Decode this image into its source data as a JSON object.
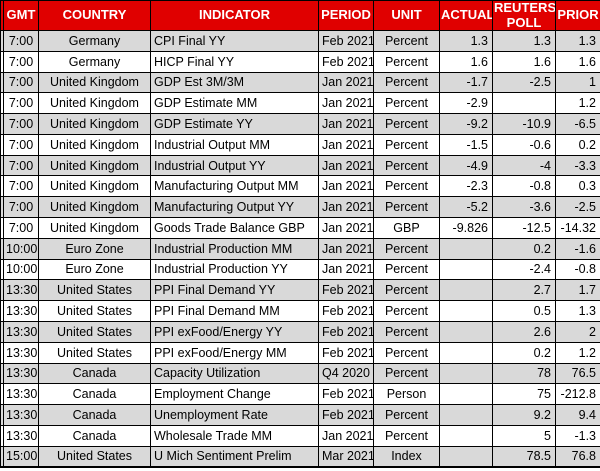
{
  "colors": {
    "header_bg": "#E00000",
    "header_text": "#FFFFFF",
    "alt_row_bg": "#D9D9D9",
    "row_bg": "#FFFFFF",
    "border": "#000000",
    "text": "#000000"
  },
  "chart_data": {
    "type": "table",
    "title": "Economic calendar releases",
    "columns": [
      {
        "key": "gmt",
        "label": "GMT"
      },
      {
        "key": "country",
        "label": "COUNTRY"
      },
      {
        "key": "indicator",
        "label": "INDICATOR"
      },
      {
        "key": "period",
        "label": "PERIOD"
      },
      {
        "key": "unit",
        "label": "UNIT"
      },
      {
        "key": "actual",
        "label": "ACTUAL"
      },
      {
        "key": "poll",
        "label": "REUTERS POLL"
      },
      {
        "key": "prior",
        "label": "PRIOR"
      }
    ],
    "rows": [
      {
        "gmt": "7:00",
        "country": "Germany",
        "indicator": "CPI Final YY",
        "period": "Feb 2021",
        "unit": "Percent",
        "actual": "1.3",
        "poll": "1.3",
        "prior": "1.3"
      },
      {
        "gmt": "7:00",
        "country": "Germany",
        "indicator": "HICP Final YY",
        "period": "Feb 2021",
        "unit": "Percent",
        "actual": "1.6",
        "poll": "1.6",
        "prior": "1.6"
      },
      {
        "gmt": "7:00",
        "country": "United Kingdom",
        "indicator": "GDP Est 3M/3M",
        "period": "Jan 2021",
        "unit": "Percent",
        "actual": "-1.7",
        "poll": "-2.5",
        "prior": "1"
      },
      {
        "gmt": "7:00",
        "country": "United Kingdom",
        "indicator": "GDP Estimate MM",
        "period": "Jan 2021",
        "unit": "Percent",
        "actual": "-2.9",
        "poll": "",
        "prior": "1.2"
      },
      {
        "gmt": "7:00",
        "country": "United Kingdom",
        "indicator": "GDP Estimate YY",
        "period": "Jan 2021",
        "unit": "Percent",
        "actual": "-9.2",
        "poll": "-10.9",
        "prior": "-6.5"
      },
      {
        "gmt": "7:00",
        "country": "United Kingdom",
        "indicator": "Industrial Output MM",
        "period": "Jan 2021",
        "unit": "Percent",
        "actual": "-1.5",
        "poll": "-0.6",
        "prior": "0.2"
      },
      {
        "gmt": "7:00",
        "country": "United Kingdom",
        "indicator": "Industrial Output YY",
        "period": "Jan 2021",
        "unit": "Percent",
        "actual": "-4.9",
        "poll": "-4",
        "prior": "-3.3"
      },
      {
        "gmt": "7:00",
        "country": "United Kingdom",
        "indicator": "Manufacturing Output MM",
        "period": "Jan 2021",
        "unit": "Percent",
        "actual": "-2.3",
        "poll": "-0.8",
        "prior": "0.3"
      },
      {
        "gmt": "7:00",
        "country": "United Kingdom",
        "indicator": "Manufacturing Output YY",
        "period": "Jan 2021",
        "unit": "Percent",
        "actual": "-5.2",
        "poll": "-3.6",
        "prior": "-2.5"
      },
      {
        "gmt": "7:00",
        "country": "United Kingdom",
        "indicator": "Goods Trade Balance GBP",
        "period": "Jan 2021",
        "unit": "GBP",
        "actual": "-9.826",
        "poll": "-12.5",
        "prior": "-14.32"
      },
      {
        "gmt": "10:00",
        "country": "Euro Zone",
        "indicator": "Industrial Production MM",
        "period": "Jan 2021",
        "unit": "Percent",
        "actual": "",
        "poll": "0.2",
        "prior": "-1.6"
      },
      {
        "gmt": "10:00",
        "country": "Euro Zone",
        "indicator": "Industrial Production YY",
        "period": "Jan 2021",
        "unit": "Percent",
        "actual": "",
        "poll": "-2.4",
        "prior": "-0.8"
      },
      {
        "gmt": "13:30",
        "country": "United States",
        "indicator": "PPI Final Demand YY",
        "period": "Feb 2021",
        "unit": "Percent",
        "actual": "",
        "poll": "2.7",
        "prior": "1.7"
      },
      {
        "gmt": "13:30",
        "country": "United States",
        "indicator": "PPI Final Demand MM",
        "period": "Feb 2021",
        "unit": "Percent",
        "actual": "",
        "poll": "0.5",
        "prior": "1.3"
      },
      {
        "gmt": "13:30",
        "country": "United States",
        "indicator": "PPI exFood/Energy YY",
        "period": "Feb 2021",
        "unit": "Percent",
        "actual": "",
        "poll": "2.6",
        "prior": "2"
      },
      {
        "gmt": "13:30",
        "country": "United States",
        "indicator": "PPI exFood/Energy MM",
        "period": "Feb 2021",
        "unit": "Percent",
        "actual": "",
        "poll": "0.2",
        "prior": "1.2"
      },
      {
        "gmt": "13:30",
        "country": "Canada",
        "indicator": "Capacity Utilization",
        "period": "Q4 2020",
        "unit": "Percent",
        "actual": "",
        "poll": "78",
        "prior": "76.5"
      },
      {
        "gmt": "13:30",
        "country": "Canada",
        "indicator": "Employment Change",
        "period": "Feb 2021",
        "unit": "Person",
        "actual": "",
        "poll": "75",
        "prior": "-212.8"
      },
      {
        "gmt": "13:30",
        "country": "Canada",
        "indicator": "Unemployment Rate",
        "period": "Feb 2021",
        "unit": "Percent",
        "actual": "",
        "poll": "9.2",
        "prior": "9.4"
      },
      {
        "gmt": "13:30",
        "country": "Canada",
        "indicator": "Wholesale Trade MM",
        "period": "Jan 2021",
        "unit": "Percent",
        "actual": "",
        "poll": "5",
        "prior": "-1.3"
      },
      {
        "gmt": "15:00",
        "country": "United States",
        "indicator": "U Mich Sentiment Prelim",
        "period": "Mar 2021",
        "unit": "Index",
        "actual": "",
        "poll": "78.5",
        "prior": "76.8"
      }
    ]
  }
}
